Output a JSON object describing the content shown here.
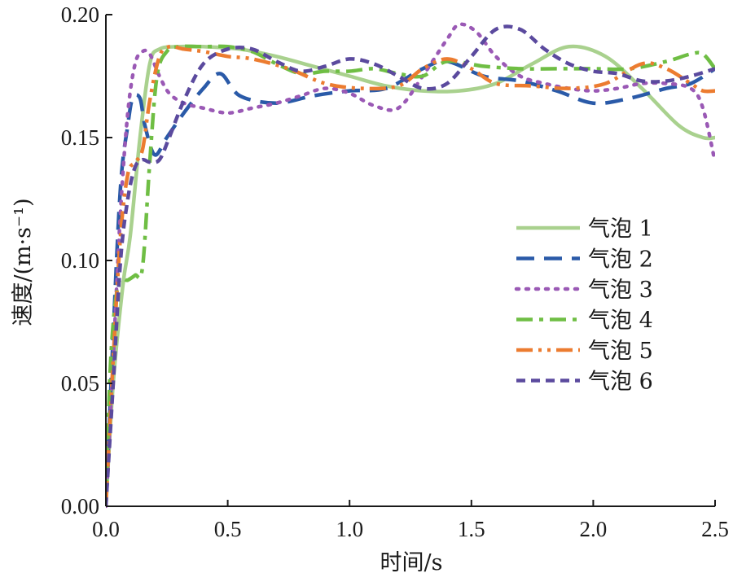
{
  "chart_data": {
    "type": "line",
    "xlabel": "时间/s",
    "ylabel": "速度/(m·s⁻¹)",
    "xlim": [
      0,
      2.5
    ],
    "ylim": [
      0,
      0.2
    ],
    "xticks": [
      0,
      0.5,
      1.0,
      1.5,
      2.0,
      2.5
    ],
    "xtick_labels": [
      "0.0",
      "0.5",
      "1.0",
      "1.5",
      "2.0",
      "2.5"
    ],
    "yticks": [
      0,
      0.05,
      0.1,
      0.15,
      0.2
    ],
    "ytick_labels": [
      "0.00",
      "0.05",
      "0.10",
      "0.15",
      "0.20"
    ],
    "grid": false,
    "legend_position": "right",
    "series": [
      {
        "name": "气泡 1",
        "color": "#a9d18e",
        "dash": "solid",
        "x": [
          0,
          0.03,
          0.07,
          0.1,
          0.14,
          0.18,
          0.22,
          0.3,
          0.4,
          0.55,
          0.7,
          0.85,
          1.0,
          1.15,
          1.3,
          1.45,
          1.6,
          1.75,
          1.9,
          2.05,
          2.2,
          2.35,
          2.45,
          2.5
        ],
        "y": [
          0,
          0.05,
          0.09,
          0.11,
          0.15,
          0.18,
          0.186,
          0.187,
          0.187,
          0.186,
          0.183,
          0.179,
          0.175,
          0.171,
          0.169,
          0.169,
          0.172,
          0.18,
          0.187,
          0.183,
          0.17,
          0.155,
          0.15,
          0.15
        ]
      },
      {
        "name": "气泡 2",
        "color": "#2a5aa8",
        "dash": "long-dash",
        "x": [
          0,
          0.03,
          0.06,
          0.09,
          0.11,
          0.14,
          0.16,
          0.2,
          0.25,
          0.32,
          0.4,
          0.47,
          0.55,
          0.7,
          0.85,
          1.0,
          1.15,
          1.3,
          1.4,
          1.55,
          1.7,
          1.85,
          2.0,
          2.15,
          2.3,
          2.4,
          2.5
        ],
        "y": [
          0,
          0.07,
          0.13,
          0.155,
          0.166,
          0.166,
          0.155,
          0.143,
          0.15,
          0.16,
          0.17,
          0.176,
          0.167,
          0.164,
          0.167,
          0.169,
          0.17,
          0.178,
          0.181,
          0.175,
          0.173,
          0.169,
          0.164,
          0.166,
          0.17,
          0.172,
          0.178
        ]
      },
      {
        "name": "气泡 3",
        "color": "#9a59b5",
        "dash": "dotted",
        "x": [
          0,
          0.03,
          0.06,
          0.09,
          0.12,
          0.15,
          0.18,
          0.22,
          0.26,
          0.32,
          0.4,
          0.5,
          0.6,
          0.7,
          0.8,
          0.9,
          1.0,
          1.1,
          1.2,
          1.3,
          1.4,
          1.45,
          1.52,
          1.6,
          1.7,
          1.8,
          1.9,
          2.0,
          2.1,
          2.2,
          2.3,
          2.4,
          2.45,
          2.5
        ],
        "y": [
          0,
          0.06,
          0.12,
          0.16,
          0.18,
          0.185,
          0.184,
          0.175,
          0.168,
          0.164,
          0.162,
          0.16,
          0.162,
          0.164,
          0.167,
          0.17,
          0.168,
          0.163,
          0.162,
          0.175,
          0.19,
          0.196,
          0.193,
          0.183,
          0.175,
          0.172,
          0.17,
          0.169,
          0.17,
          0.172,
          0.172,
          0.17,
          0.162,
          0.14
        ]
      },
      {
        "name": "气泡 4",
        "color": "#6fbe44",
        "dash": "dash-dot",
        "x": [
          0,
          0.02,
          0.05,
          0.09,
          0.12,
          0.15,
          0.18,
          0.21,
          0.25,
          0.3,
          0.4,
          0.5,
          0.6,
          0.7,
          0.8,
          0.9,
          1.0,
          1.1,
          1.2,
          1.3,
          1.4,
          1.55,
          1.7,
          1.85,
          2.0,
          2.15,
          2.3,
          2.4,
          2.45,
          2.5
        ],
        "y": [
          0,
          0.06,
          0.09,
          0.092,
          0.094,
          0.097,
          0.14,
          0.175,
          0.185,
          0.187,
          0.187,
          0.187,
          0.185,
          0.18,
          0.176,
          0.177,
          0.177,
          0.178,
          0.176,
          0.175,
          0.181,
          0.179,
          0.178,
          0.178,
          0.178,
          0.178,
          0.181,
          0.184,
          0.184,
          0.178
        ]
      },
      {
        "name": "气泡 5",
        "color": "#ec7c30",
        "dash": "dash-dot-dot",
        "x": [
          0,
          0.03,
          0.06,
          0.09,
          0.12,
          0.15,
          0.18,
          0.22,
          0.26,
          0.32,
          0.4,
          0.5,
          0.6,
          0.75,
          0.9,
          1.05,
          1.2,
          1.3,
          1.4,
          1.5,
          1.6,
          1.75,
          1.9,
          2.05,
          2.2,
          2.3,
          2.4,
          2.45,
          2.5
        ],
        "y": [
          0,
          0.06,
          0.11,
          0.135,
          0.14,
          0.145,
          0.165,
          0.183,
          0.187,
          0.186,
          0.185,
          0.183,
          0.182,
          0.178,
          0.172,
          0.17,
          0.171,
          0.178,
          0.182,
          0.178,
          0.172,
          0.171,
          0.17,
          0.172,
          0.18,
          0.178,
          0.172,
          0.169,
          0.169
        ]
      },
      {
        "name": "气泡 6",
        "color": "#5b4a9e",
        "dash": "short-dash",
        "x": [
          0,
          0.03,
          0.06,
          0.09,
          0.12,
          0.15,
          0.18,
          0.22,
          0.26,
          0.32,
          0.4,
          0.5,
          0.6,
          0.7,
          0.8,
          0.9,
          1.0,
          1.1,
          1.2,
          1.3,
          1.4,
          1.5,
          1.6,
          1.7,
          1.8,
          1.9,
          2.0,
          2.1,
          2.2,
          2.3,
          2.4,
          2.5
        ],
        "y": [
          0,
          0.05,
          0.1,
          0.125,
          0.138,
          0.141,
          0.14,
          0.141,
          0.15,
          0.165,
          0.18,
          0.186,
          0.186,
          0.181,
          0.177,
          0.179,
          0.182,
          0.18,
          0.175,
          0.17,
          0.172,
          0.183,
          0.194,
          0.194,
          0.186,
          0.18,
          0.177,
          0.176,
          0.173,
          0.173,
          0.175,
          0.178
        ]
      }
    ]
  }
}
